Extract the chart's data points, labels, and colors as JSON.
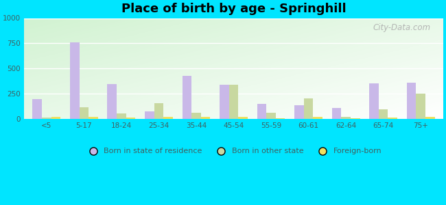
{
  "title": "Place of birth by age - Springhill",
  "categories": [
    "<5",
    "5-17",
    "18-24",
    "25-34",
    "35-44",
    "45-54",
    "55-59",
    "60-61",
    "62-64",
    "65-74",
    "75+"
  ],
  "born_in_state": [
    200,
    760,
    350,
    75,
    430,
    340,
    150,
    140,
    110,
    355,
    360
  ],
  "born_other_state": [
    15,
    120,
    55,
    160,
    65,
    340,
    65,
    205,
    20,
    100,
    255
  ],
  "foreign_born": [
    20,
    20,
    15,
    20,
    20,
    20,
    10,
    20,
    10,
    15,
    20
  ],
  "color_state": "#c9b8e8",
  "color_other": "#c8d8a0",
  "color_foreign": "#f0e060",
  "ylim": [
    0,
    1000
  ],
  "yticks": [
    0,
    250,
    500,
    750,
    1000
  ],
  "background_color": "#00e5ff",
  "legend_labels": [
    "Born in state of residence",
    "Born in other state",
    "Foreign-born"
  ],
  "bar_width": 0.25,
  "title_fontsize": 13,
  "tick_color": "#406060",
  "watermark": "City-Data.com"
}
